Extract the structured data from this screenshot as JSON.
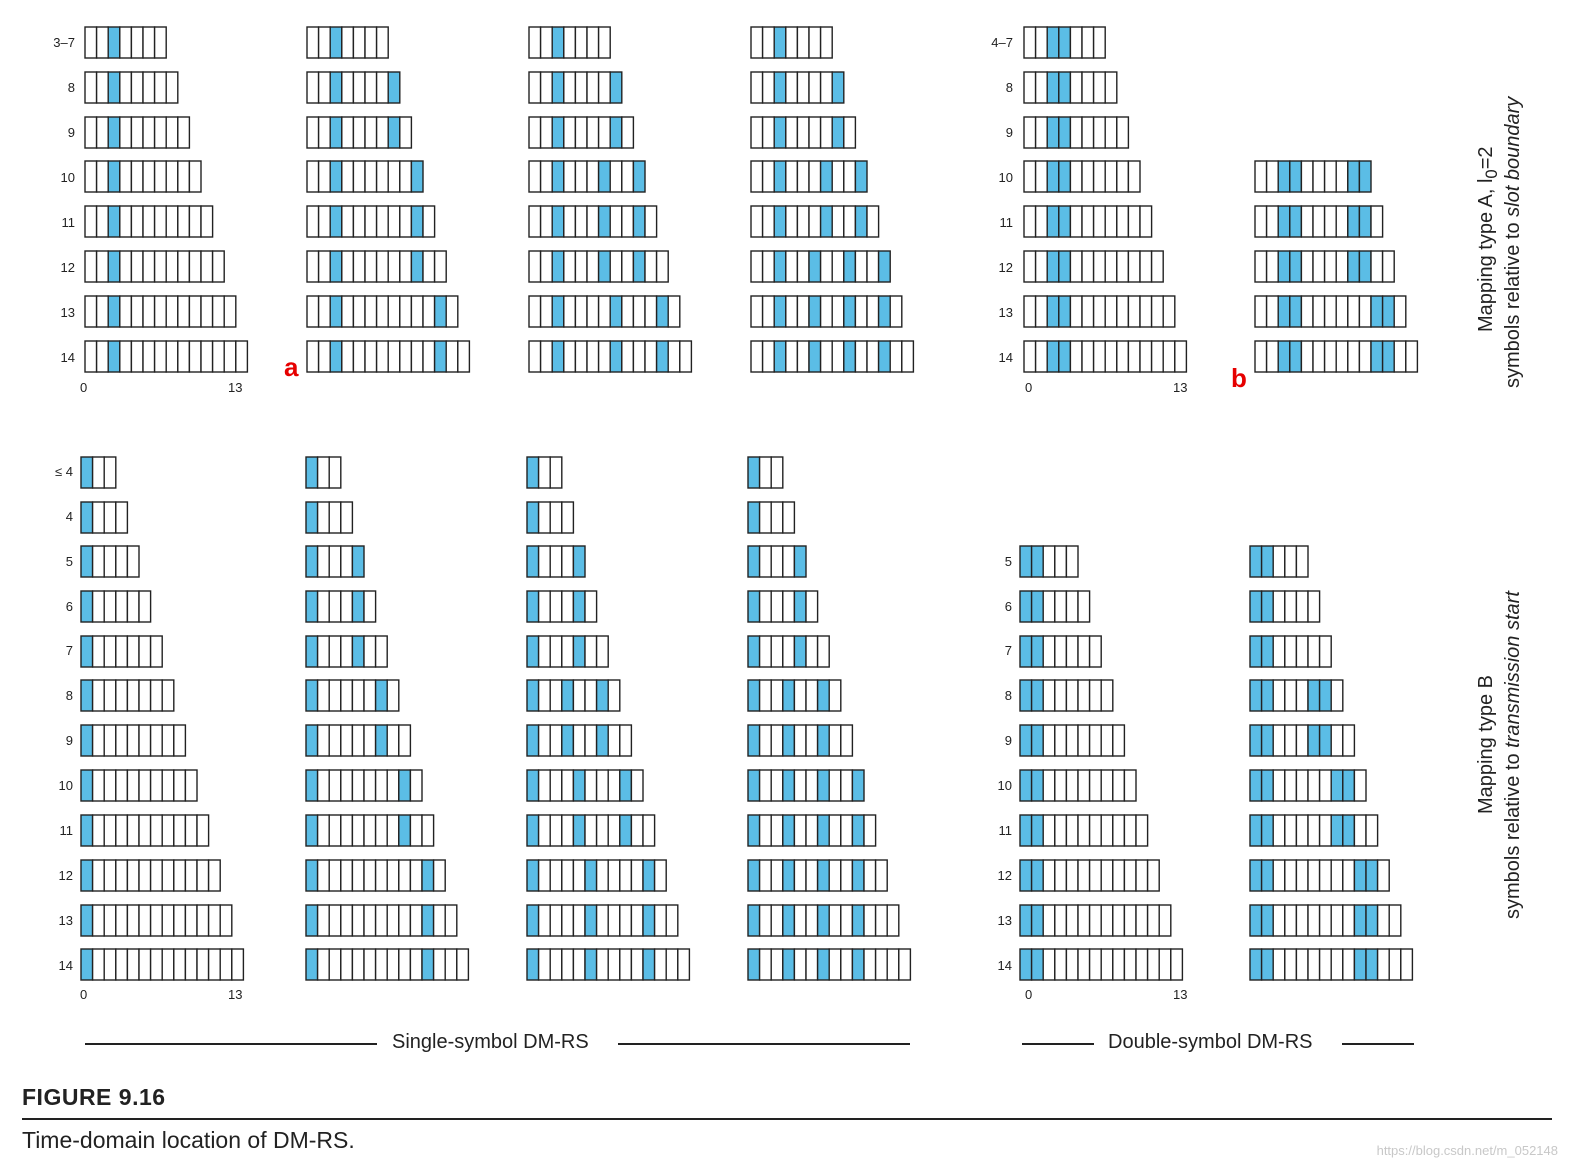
{
  "colors": {
    "dmrs": "#5bbde6",
    "empty": "#ffffff",
    "outline": "#222222",
    "marker": "#e60000"
  },
  "top_section": {
    "side_label_line1_a": "Mapping type A, l",
    "side_label_sub": "0",
    "side_label_line1_b": "=2",
    "side_label_line2_a": "symbols relative to ",
    "side_label_line2_italic": "slot boundary",
    "single_row_labels": [
      "3–7",
      "8",
      "9",
      "10",
      "11",
      "12",
      "13",
      "14"
    ],
    "double_row_labels": [
      "4–7",
      "8",
      "9",
      "10",
      "11",
      "12",
      "13",
      "14"
    ],
    "single_axis": {
      "start": "0",
      "end": "13"
    },
    "double_axis": {
      "start": "0",
      "end": "13"
    },
    "marker_a": "a",
    "marker_b": "b"
  },
  "bottom_section": {
    "side_label_line1": "Mapping type B",
    "side_label_line2_a": "symbols relative to ",
    "side_label_line2_italic": "transmission start",
    "single_row_labels": [
      "≤ 4",
      "4",
      "5",
      "6",
      "7",
      "8",
      "9",
      "10",
      "11",
      "12",
      "13",
      "14"
    ],
    "double_row_labels": [
      "5",
      "6",
      "7",
      "8",
      "9",
      "10",
      "11",
      "12",
      "13",
      "14"
    ],
    "single_axis": {
      "start": "0",
      "end": "13"
    },
    "double_axis": {
      "start": "0",
      "end": "13"
    }
  },
  "groups": {
    "single": "Single-symbol DM-RS",
    "double": "Double-symbol DM-RS"
  },
  "figure": {
    "number": "FIGURE 9.16",
    "caption": "Time-domain location of DM-RS."
  },
  "watermark": "https://blog.csdn.net/m_052148",
  "grids": {
    "A_single": [
      {
        "rows": [
          [
            7,
            [
              2
            ]
          ],
          [
            8,
            [
              2
            ]
          ],
          [
            9,
            [
              2
            ]
          ],
          [
            10,
            [
              2
            ]
          ],
          [
            11,
            [
              2
            ]
          ],
          [
            12,
            [
              2
            ]
          ],
          [
            13,
            [
              2
            ]
          ],
          [
            14,
            [
              2
            ]
          ]
        ]
      },
      {
        "rows": [
          [
            7,
            [
              2
            ]
          ],
          [
            8,
            [
              2,
              7
            ]
          ],
          [
            9,
            [
              2,
              7
            ]
          ],
          [
            10,
            [
              2,
              9
            ]
          ],
          [
            11,
            [
              2,
              9
            ]
          ],
          [
            12,
            [
              2,
              9
            ]
          ],
          [
            13,
            [
              2,
              11
            ]
          ],
          [
            14,
            [
              2,
              11
            ]
          ]
        ]
      },
      {
        "rows": [
          [
            7,
            [
              2
            ]
          ],
          [
            8,
            [
              2,
              7
            ]
          ],
          [
            9,
            [
              2,
              7
            ]
          ],
          [
            10,
            [
              2,
              6,
              9
            ]
          ],
          [
            11,
            [
              2,
              6,
              9
            ]
          ],
          [
            12,
            [
              2,
              6,
              9
            ]
          ],
          [
            13,
            [
              2,
              7,
              11
            ]
          ],
          [
            14,
            [
              2,
              7,
              11
            ]
          ]
        ]
      },
      {
        "rows": [
          [
            7,
            [
              2
            ]
          ],
          [
            8,
            [
              2,
              7
            ]
          ],
          [
            9,
            [
              2,
              7
            ]
          ],
          [
            10,
            [
              2,
              6,
              9
            ]
          ],
          [
            11,
            [
              2,
              6,
              9
            ]
          ],
          [
            12,
            [
              2,
              5,
              8,
              11
            ]
          ],
          [
            13,
            [
              2,
              5,
              8,
              11
            ]
          ],
          [
            14,
            [
              2,
              5,
              8,
              11
            ]
          ]
        ]
      }
    ],
    "A_double": [
      {
        "rows": [
          [
            7,
            [
              2,
              3
            ]
          ],
          [
            8,
            [
              2,
              3
            ]
          ],
          [
            9,
            [
              2,
              3
            ]
          ],
          [
            10,
            [
              2,
              3
            ]
          ],
          [
            11,
            [
              2,
              3
            ]
          ],
          [
            12,
            [
              2,
              3
            ]
          ],
          [
            13,
            [
              2,
              3
            ]
          ],
          [
            14,
            [
              2,
              3
            ]
          ]
        ]
      },
      {
        "rows": [
          null,
          null,
          null,
          [
            10,
            [
              2,
              3,
              8,
              9
            ]
          ],
          [
            11,
            [
              2,
              3,
              8,
              9
            ]
          ],
          [
            12,
            [
              2,
              3,
              8,
              9
            ]
          ],
          [
            13,
            [
              2,
              3,
              10,
              11
            ]
          ],
          [
            14,
            [
              2,
              3,
              10,
              11
            ]
          ]
        ]
      }
    ],
    "B_single": [
      {
        "rows": [
          [
            3,
            [
              0
            ]
          ],
          [
            4,
            [
              0
            ]
          ],
          [
            5,
            [
              0
            ]
          ],
          [
            6,
            [
              0
            ]
          ],
          [
            7,
            [
              0
            ]
          ],
          [
            8,
            [
              0
            ]
          ],
          [
            9,
            [
              0
            ]
          ],
          [
            10,
            [
              0
            ]
          ],
          [
            11,
            [
              0
            ]
          ],
          [
            12,
            [
              0
            ]
          ],
          [
            13,
            [
              0
            ]
          ],
          [
            14,
            [
              0
            ]
          ]
        ]
      },
      {
        "rows": [
          [
            3,
            [
              0
            ]
          ],
          [
            4,
            [
              0
            ]
          ],
          [
            5,
            [
              0,
              4
            ]
          ],
          [
            6,
            [
              0,
              4
            ]
          ],
          [
            7,
            [
              0,
              4
            ]
          ],
          [
            8,
            [
              0,
              6
            ]
          ],
          [
            9,
            [
              0,
              6
            ]
          ],
          [
            10,
            [
              0,
              8
            ]
          ],
          [
            11,
            [
              0,
              8
            ]
          ],
          [
            12,
            [
              0,
              10
            ]
          ],
          [
            13,
            [
              0,
              10
            ]
          ],
          [
            14,
            [
              0,
              10
            ]
          ]
        ]
      },
      {
        "rows": [
          [
            3,
            [
              0
            ]
          ],
          [
            4,
            [
              0
            ]
          ],
          [
            5,
            [
              0,
              4
            ]
          ],
          [
            6,
            [
              0,
              4
            ]
          ],
          [
            7,
            [
              0,
              4
            ]
          ],
          [
            8,
            [
              0,
              3,
              6
            ]
          ],
          [
            9,
            [
              0,
              3,
              6
            ]
          ],
          [
            10,
            [
              0,
              4,
              8
            ]
          ],
          [
            11,
            [
              0,
              4,
              8
            ]
          ],
          [
            12,
            [
              0,
              5,
              10
            ]
          ],
          [
            13,
            [
              0,
              5,
              10
            ]
          ],
          [
            14,
            [
              0,
              5,
              10
            ]
          ]
        ]
      },
      {
        "rows": [
          [
            3,
            [
              0
            ]
          ],
          [
            4,
            [
              0
            ]
          ],
          [
            5,
            [
              0,
              4
            ]
          ],
          [
            6,
            [
              0,
              4
            ]
          ],
          [
            7,
            [
              0,
              4
            ]
          ],
          [
            8,
            [
              0,
              3,
              6
            ]
          ],
          [
            9,
            [
              0,
              3,
              6
            ]
          ],
          [
            10,
            [
              0,
              3,
              6,
              9
            ]
          ],
          [
            11,
            [
              0,
              3,
              6,
              9
            ]
          ],
          [
            12,
            [
              0,
              3,
              6,
              9
            ]
          ],
          [
            13,
            [
              0,
              3,
              6,
              9
            ]
          ],
          [
            14,
            [
              0,
              3,
              6,
              9
            ]
          ]
        ]
      }
    ],
    "B_double": [
      {
        "rows": [
          [
            5,
            [
              0,
              1
            ]
          ],
          [
            6,
            [
              0,
              1
            ]
          ],
          [
            7,
            [
              0,
              1
            ]
          ],
          [
            8,
            [
              0,
              1
            ]
          ],
          [
            9,
            [
              0,
              1
            ]
          ],
          [
            10,
            [
              0,
              1
            ]
          ],
          [
            11,
            [
              0,
              1
            ]
          ],
          [
            12,
            [
              0,
              1
            ]
          ],
          [
            13,
            [
              0,
              1
            ]
          ],
          [
            14,
            [
              0,
              1
            ]
          ]
        ]
      },
      {
        "rows": [
          [
            5,
            [
              0,
              1
            ]
          ],
          [
            6,
            [
              0,
              1
            ]
          ],
          [
            7,
            [
              0,
              1
            ]
          ],
          [
            8,
            [
              0,
              1,
              5,
              6
            ]
          ],
          [
            9,
            [
              0,
              1,
              5,
              6
            ]
          ],
          [
            10,
            [
              0,
              1,
              7,
              8
            ]
          ],
          [
            11,
            [
              0,
              1,
              7,
              8
            ]
          ],
          [
            12,
            [
              0,
              1,
              9,
              10
            ]
          ],
          [
            13,
            [
              0,
              1,
              9,
              10
            ]
          ],
          [
            14,
            [
              0,
              1,
              9,
              10
            ]
          ]
        ]
      }
    ]
  }
}
